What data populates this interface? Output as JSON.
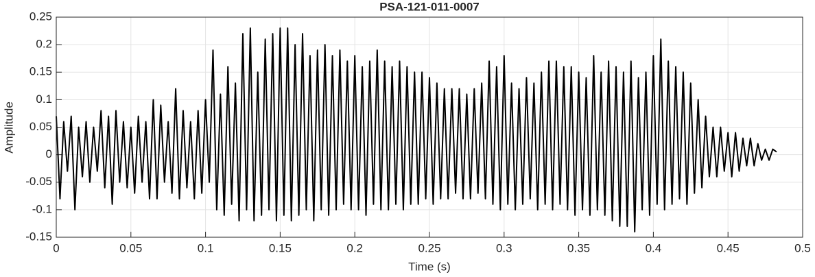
{
  "chart_data": {
    "type": "line",
    "title": "PSA-121-011-0007",
    "x_label": "Time (s)",
    "y_label": "Amplitude",
    "color": "#000000",
    "grid": true,
    "xlim": [
      0,
      0.5
    ],
    "xticks": [
      0,
      0.05,
      0.1,
      0.15,
      0.2,
      0.25,
      0.3,
      0.35,
      0.4,
      0.45,
      0.5
    ],
    "ylim": [
      -0.15,
      0.25
    ],
    "yticks": [
      -0.15,
      -0.1,
      -0.05,
      0,
      0.05,
      0.1,
      0.15,
      0.2,
      0.25
    ],
    "x": [
      0,
      0.0025,
      0.005,
      0.0075,
      0.01,
      0.0125,
      0.015,
      0.0175,
      0.02,
      0.0225,
      0.025,
      0.0275,
      0.03,
      0.0325,
      0.035,
      0.0375,
      0.04,
      0.0425,
      0.045,
      0.0475,
      0.05,
      0.0525,
      0.055,
      0.0575,
      0.06,
      0.0625,
      0.065,
      0.0675,
      0.07,
      0.0725,
      0.075,
      0.0775,
      0.08,
      0.0825,
      0.085,
      0.0875,
      0.09,
      0.0925,
      0.095,
      0.0975,
      0.1,
      0.1025,
      0.105,
      0.1075,
      0.11,
      0.1125,
      0.115,
      0.1175,
      0.12,
      0.1225,
      0.125,
      0.1275,
      0.13,
      0.1325,
      0.135,
      0.1375,
      0.14,
      0.1425,
      0.145,
      0.1475,
      0.15,
      0.1525,
      0.155,
      0.1575,
      0.16,
      0.1625,
      0.165,
      0.1675,
      0.17,
      0.1725,
      0.175,
      0.1775,
      0.18,
      0.1825,
      0.185,
      0.1875,
      0.19,
      0.1925,
      0.195,
      0.1975,
      0.2,
      0.2025,
      0.205,
      0.2075,
      0.21,
      0.2125,
      0.215,
      0.2175,
      0.22,
      0.2225,
      0.225,
      0.2275,
      0.23,
      0.2325,
      0.235,
      0.2375,
      0.24,
      0.2425,
      0.245,
      0.2475,
      0.25,
      0.2525,
      0.255,
      0.2575,
      0.26,
      0.2625,
      0.265,
      0.2675,
      0.27,
      0.2725,
      0.275,
      0.2775,
      0.28,
      0.2825,
      0.285,
      0.2875,
      0.29,
      0.2925,
      0.295,
      0.2975,
      0.3,
      0.3025,
      0.305,
      0.3075,
      0.31,
      0.3125,
      0.315,
      0.3175,
      0.32,
      0.3225,
      0.325,
      0.3275,
      0.33,
      0.3325,
      0.335,
      0.3375,
      0.34,
      0.3425,
      0.345,
      0.3475,
      0.35,
      0.3525,
      0.355,
      0.3575,
      0.36,
      0.3625,
      0.365,
      0.3675,
      0.37,
      0.3725,
      0.375,
      0.3775,
      0.38,
      0.3825,
      0.385,
      0.3875,
      0.39,
      0.3925,
      0.395,
      0.3975,
      0.4,
      0.4025,
      0.405,
      0.4075,
      0.41,
      0.4125,
      0.415,
      0.4175,
      0.42,
      0.4225,
      0.425,
      0.4275,
      0.43,
      0.4325,
      0.435,
      0.4375,
      0.44,
      0.4425,
      0.445,
      0.4475,
      0.45,
      0.4525,
      0.455,
      0.4575,
      0.46,
      0.4625,
      0.465,
      0.4675,
      0.47,
      0.4725,
      0.475,
      0.4775,
      0.48,
      0.4825
    ],
    "values": [
      0.07,
      -0.08,
      0.06,
      -0.03,
      0.07,
      -0.1,
      0.05,
      -0.04,
      0.06,
      -0.05,
      0.05,
      -0.03,
      0.08,
      -0.06,
      0.07,
      -0.09,
      0.08,
      -0.05,
      0.06,
      -0.06,
      0.05,
      -0.07,
      0.07,
      -0.05,
      0.06,
      -0.08,
      0.1,
      -0.08,
      0.09,
      -0.05,
      0.06,
      -0.07,
      0.12,
      -0.08,
      0.08,
      -0.06,
      0.06,
      -0.08,
      0.08,
      -0.07,
      0.1,
      -0.05,
      0.19,
      -0.1,
      0.11,
      -0.11,
      0.16,
      -0.09,
      0.13,
      -0.12,
      0.22,
      -0.1,
      0.23,
      -0.12,
      0.15,
      -0.11,
      0.21,
      -0.1,
      0.22,
      -0.12,
      0.23,
      -0.11,
      0.23,
      -0.12,
      0.2,
      -0.11,
      0.22,
      -0.1,
      0.18,
      -0.12,
      0.19,
      -0.1,
      0.2,
      -0.11,
      0.18,
      -0.1,
      0.19,
      -0.09,
      0.17,
      -0.1,
      0.18,
      -0.1,
      0.16,
      -0.11,
      0.17,
      -0.09,
      0.19,
      -0.1,
      0.17,
      -0.1,
      0.16,
      -0.09,
      0.17,
      -0.1,
      0.16,
      -0.09,
      0.15,
      -0.09,
      0.15,
      -0.08,
      0.14,
      -0.09,
      0.13,
      -0.08,
      0.12,
      -0.08,
      0.12,
      -0.07,
      0.12,
      -0.08,
      0.11,
      -0.08,
      0.12,
      -0.07,
      0.13,
      -0.08,
      0.17,
      -0.09,
      0.16,
      -0.1,
      0.18,
      -0.09,
      0.13,
      -0.1,
      0.12,
      -0.09,
      0.14,
      -0.08,
      0.13,
      -0.1,
      0.15,
      -0.09,
      0.17,
      -0.1,
      0.17,
      -0.09,
      0.16,
      -0.1,
      0.16,
      -0.11,
      0.15,
      -0.1,
      0.14,
      -0.11,
      0.18,
      -0.1,
      0.15,
      -0.11,
      0.17,
      -0.12,
      0.16,
      -0.13,
      0.15,
      -0.13,
      0.17,
      -0.14,
      0.14,
      -0.1,
      0.15,
      -0.11,
      0.18,
      -0.09,
      0.21,
      -0.1,
      0.17,
      -0.09,
      0.16,
      -0.08,
      0.15,
      -0.09,
      0.13,
      -0.07,
      0.1,
      -0.06,
      0.07,
      -0.04,
      0.05,
      -0.04,
      0.05,
      -0.03,
      0.04,
      -0.04,
      0.04,
      -0.03,
      0.03,
      -0.02,
      0.03,
      -0.02,
      0.02,
      -0.01,
      0.01,
      -0.01,
      0.01,
      0.005
    ]
  }
}
